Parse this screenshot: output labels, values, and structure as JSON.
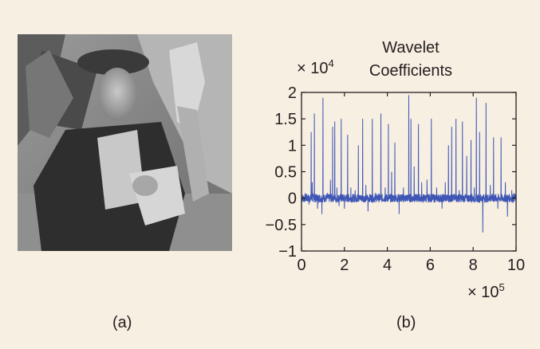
{
  "figure": {
    "panel_a_caption": "(a)",
    "panel_b_caption": "(b)"
  },
  "image_a": {
    "colors": {
      "background": "#f7efe1",
      "photo_mid": "#8a8a8a"
    }
  },
  "chart_data": {
    "type": "line",
    "title_line1": "Wavelet",
    "title_line2": "Coefficients",
    "y_multiplier": "× 10",
    "y_multiplier_exp": "4",
    "x_multiplier": "× 10",
    "x_multiplier_exp": "5",
    "xlim": [
      0,
      10
    ],
    "ylim": [
      -1,
      2
    ],
    "x_ticks": [
      0,
      2,
      4,
      6,
      8,
      10
    ],
    "x_tick_labels": [
      "0",
      "2",
      "4",
      "6",
      "8",
      "10"
    ],
    "y_ticks": [
      -1,
      -0.5,
      0,
      0.5,
      1,
      1.5,
      2
    ],
    "y_tick_labels": [
      "−1",
      "−0.5",
      "0",
      "0.5",
      "1",
      "1.5",
      "2"
    ],
    "grid": false,
    "series_color": "#3d55b5",
    "series": [
      {
        "name": "",
        "spikes": [
          [
            0.2,
            0.08
          ],
          [
            0.35,
            -0.12
          ],
          [
            0.45,
            1.25
          ],
          [
            0.5,
            0.3
          ],
          [
            0.6,
            1.6
          ],
          [
            0.75,
            -0.2
          ],
          [
            0.95,
            -0.3
          ],
          [
            1.0,
            1.9
          ],
          [
            1.2,
            0.1
          ],
          [
            1.35,
            0.35
          ],
          [
            1.45,
            1.35
          ],
          [
            1.55,
            1.45
          ],
          [
            1.65,
            0.2
          ],
          [
            1.75,
            -0.15
          ],
          [
            1.85,
            1.5
          ],
          [
            2.0,
            -0.2
          ],
          [
            2.15,
            1.2
          ],
          [
            2.3,
            0.2
          ],
          [
            2.5,
            0.15
          ],
          [
            2.65,
            1.0
          ],
          [
            2.85,
            1.5
          ],
          [
            3.0,
            0.25
          ],
          [
            3.1,
            -0.25
          ],
          [
            3.3,
            1.5
          ],
          [
            3.45,
            0.1
          ],
          [
            3.7,
            1.6
          ],
          [
            3.9,
            0.2
          ],
          [
            4.05,
            1.4
          ],
          [
            4.2,
            0.5
          ],
          [
            4.35,
            1.05
          ],
          [
            4.55,
            -0.3
          ],
          [
            4.75,
            0.2
          ],
          [
            5.0,
            1.95
          ],
          [
            5.1,
            1.5
          ],
          [
            5.25,
            0.6
          ],
          [
            5.45,
            1.4
          ],
          [
            5.6,
            0.3
          ],
          [
            5.85,
            0.35
          ],
          [
            6.05,
            1.5
          ],
          [
            6.3,
            0.2
          ],
          [
            6.55,
            -0.2
          ],
          [
            6.7,
            0.3
          ],
          [
            6.85,
            1.0
          ],
          [
            7.0,
            1.35
          ],
          [
            7.2,
            1.5
          ],
          [
            7.35,
            0.15
          ],
          [
            7.5,
            1.45
          ],
          [
            7.7,
            0.8
          ],
          [
            7.9,
            1.1
          ],
          [
            8.05,
            0.2
          ],
          [
            8.15,
            1.9
          ],
          [
            8.3,
            1.25
          ],
          [
            8.45,
            -0.65
          ],
          [
            8.6,
            1.8
          ],
          [
            8.8,
            0.25
          ],
          [
            8.95,
            1.15
          ],
          [
            9.15,
            -0.2
          ],
          [
            9.3,
            1.15
          ],
          [
            9.5,
            0.3
          ],
          [
            9.6,
            -0.35
          ],
          [
            9.8,
            0.15
          ],
          [
            9.9,
            0.1
          ]
        ]
      }
    ]
  }
}
